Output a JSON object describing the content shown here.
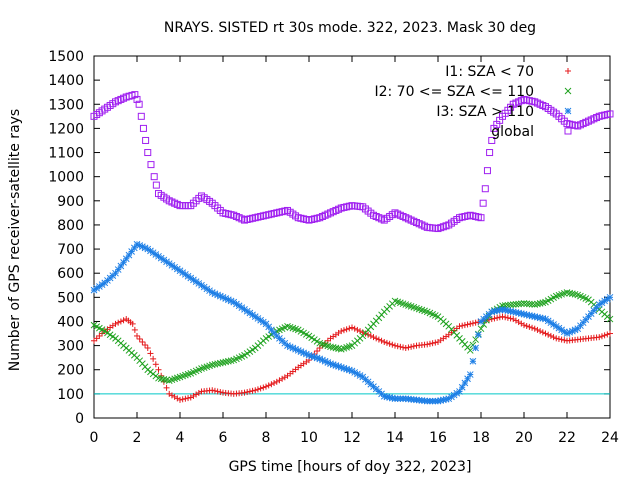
{
  "chart_data": {
    "type": "scatter",
    "title": "NRAYS. SISTED rt 30s mode. 322, 2023. Mask 30 deg",
    "xlabel": "GPS time [hours of doy 322, 2023]",
    "ylabel": "Number of GPS receiver-satellite rays",
    "xlim": [
      0,
      24
    ],
    "ylim": [
      0,
      1500
    ],
    "xticks": [
      "0",
      "2",
      "4",
      "6",
      "8",
      "10",
      "12",
      "14",
      "16",
      "18",
      "20",
      "22",
      "24"
    ],
    "yticks": [
      "0",
      "100",
      "200",
      "300",
      "400",
      "500",
      "600",
      "700",
      "800",
      "900",
      "1000",
      "1100",
      "1200",
      "1300",
      "1400",
      "1500"
    ],
    "reference_line": {
      "y": 100,
      "color": "#00c8c8"
    },
    "legend_position": "top-right",
    "series": [
      {
        "name": "I1: SZA < 70",
        "marker": "+",
        "color": "#e41a1c",
        "points": [
          [
            0,
            320
          ],
          [
            0.5,
            360
          ],
          [
            1,
            390
          ],
          [
            1.5,
            410
          ],
          [
            1.8,
            390
          ],
          [
            2,
            340
          ],
          [
            2.5,
            290
          ],
          [
            3,
            200
          ],
          [
            3.5,
            100
          ],
          [
            4,
            75
          ],
          [
            4.5,
            85
          ],
          [
            5,
            110
          ],
          [
            5.5,
            115
          ],
          [
            6,
            105
          ],
          [
            6.5,
            100
          ],
          [
            7,
            105
          ],
          [
            7.5,
            115
          ],
          [
            8,
            130
          ],
          [
            8.5,
            150
          ],
          [
            9,
            175
          ],
          [
            9.5,
            210
          ],
          [
            10,
            240
          ],
          [
            10.5,
            290
          ],
          [
            11,
            330
          ],
          [
            11.5,
            360
          ],
          [
            12,
            375
          ],
          [
            12.5,
            355
          ],
          [
            13,
            335
          ],
          [
            13.5,
            315
          ],
          [
            14,
            300
          ],
          [
            14.5,
            290
          ],
          [
            15,
            300
          ],
          [
            15.5,
            305
          ],
          [
            16,
            315
          ],
          [
            16.5,
            345
          ],
          [
            17,
            380
          ],
          [
            17.5,
            390
          ],
          [
            18,
            400
          ],
          [
            18.5,
            410
          ],
          [
            19,
            420
          ],
          [
            19.5,
            410
          ],
          [
            20,
            385
          ],
          [
            20.5,
            370
          ],
          [
            21,
            350
          ],
          [
            21.5,
            330
          ],
          [
            22,
            320
          ],
          [
            22.5,
            325
          ],
          [
            23,
            330
          ],
          [
            23.5,
            335
          ],
          [
            24,
            350
          ]
        ]
      },
      {
        "name": "I2: 70 <= SZA <= 110",
        "marker": "x",
        "color": "#1fa21f",
        "points": [
          [
            0,
            385
          ],
          [
            0.5,
            360
          ],
          [
            1,
            330
          ],
          [
            1.5,
            290
          ],
          [
            2,
            250
          ],
          [
            2.5,
            200
          ],
          [
            3,
            165
          ],
          [
            3.5,
            155
          ],
          [
            4,
            170
          ],
          [
            4.5,
            185
          ],
          [
            5,
            205
          ],
          [
            5.5,
            220
          ],
          [
            6,
            230
          ],
          [
            6.5,
            240
          ],
          [
            7,
            260
          ],
          [
            7.5,
            290
          ],
          [
            8,
            330
          ],
          [
            8.5,
            360
          ],
          [
            9,
            380
          ],
          [
            9.5,
            365
          ],
          [
            10,
            340
          ],
          [
            10.5,
            310
          ],
          [
            11,
            295
          ],
          [
            11.5,
            285
          ],
          [
            12,
            300
          ],
          [
            12.5,
            340
          ],
          [
            13,
            390
          ],
          [
            13.5,
            440
          ],
          [
            14,
            485
          ],
          [
            14.5,
            470
          ],
          [
            15,
            455
          ],
          [
            15.5,
            440
          ],
          [
            16,
            420
          ],
          [
            16.5,
            380
          ],
          [
            17,
            330
          ],
          [
            17.5,
            280
          ],
          [
            18,
            370
          ],
          [
            18.5,
            440
          ],
          [
            19,
            465
          ],
          [
            19.5,
            470
          ],
          [
            20,
            475
          ],
          [
            20.5,
            470
          ],
          [
            21,
            480
          ],
          [
            21.5,
            505
          ],
          [
            22,
            520
          ],
          [
            22.5,
            510
          ],
          [
            23,
            490
          ],
          [
            23.5,
            450
          ],
          [
            24,
            410
          ]
        ]
      },
      {
        "name": "I3: SZA > 110",
        "marker": "*",
        "color": "#1e7fe6",
        "points": [
          [
            0,
            530
          ],
          [
            0.5,
            560
          ],
          [
            1,
            600
          ],
          [
            1.5,
            660
          ],
          [
            2,
            720
          ],
          [
            2.5,
            700
          ],
          [
            3,
            670
          ],
          [
            3.5,
            640
          ],
          [
            4,
            610
          ],
          [
            4.5,
            580
          ],
          [
            5,
            550
          ],
          [
            5.5,
            520
          ],
          [
            6,
            500
          ],
          [
            6.5,
            480
          ],
          [
            7,
            450
          ],
          [
            7.5,
            420
          ],
          [
            8,
            390
          ],
          [
            8.5,
            340
          ],
          [
            9,
            300
          ],
          [
            9.5,
            280
          ],
          [
            10,
            260
          ],
          [
            10.5,
            245
          ],
          [
            11,
            225
          ],
          [
            11.5,
            210
          ],
          [
            12,
            195
          ],
          [
            12.5,
            170
          ],
          [
            13,
            130
          ],
          [
            13.5,
            90
          ],
          [
            14,
            80
          ],
          [
            14.5,
            80
          ],
          [
            15,
            75
          ],
          [
            15.5,
            70
          ],
          [
            16,
            70
          ],
          [
            16.5,
            80
          ],
          [
            17,
            110
          ],
          [
            17.5,
            180
          ],
          [
            18,
            400
          ],
          [
            18.5,
            440
          ],
          [
            19,
            450
          ],
          [
            19.5,
            440
          ],
          [
            20,
            430
          ],
          [
            20.5,
            420
          ],
          [
            21,
            410
          ],
          [
            21.5,
            380
          ],
          [
            22,
            350
          ],
          [
            22.5,
            370
          ],
          [
            23,
            420
          ],
          [
            23.5,
            470
          ],
          [
            24,
            500
          ]
        ]
      },
      {
        "name": "global",
        "marker": "square",
        "color": "#a020f0",
        "points": [
          [
            0,
            1250
          ],
          [
            0.5,
            1280
          ],
          [
            1,
            1310
          ],
          [
            1.5,
            1330
          ],
          [
            1.9,
            1340
          ],
          [
            2.1,
            1300
          ],
          [
            2.3,
            1200
          ],
          [
            2.5,
            1100
          ],
          [
            2.8,
            1000
          ],
          [
            3,
            930
          ],
          [
            3.5,
            900
          ],
          [
            4,
            880
          ],
          [
            4.5,
            880
          ],
          [
            5,
            920
          ],
          [
            5.5,
            890
          ],
          [
            6,
            850
          ],
          [
            6.5,
            840
          ],
          [
            7,
            820
          ],
          [
            7.5,
            830
          ],
          [
            8,
            840
          ],
          [
            8.5,
            850
          ],
          [
            9,
            860
          ],
          [
            9.5,
            830
          ],
          [
            10,
            820
          ],
          [
            10.5,
            830
          ],
          [
            11,
            850
          ],
          [
            11.5,
            870
          ],
          [
            12,
            880
          ],
          [
            12.5,
            875
          ],
          [
            13,
            840
          ],
          [
            13.5,
            820
          ],
          [
            14,
            850
          ],
          [
            14.5,
            830
          ],
          [
            15,
            810
          ],
          [
            15.5,
            790
          ],
          [
            16,
            785
          ],
          [
            16.5,
            800
          ],
          [
            17,
            830
          ],
          [
            17.5,
            840
          ],
          [
            18,
            830
          ],
          [
            18.2,
            950
          ],
          [
            18.4,
            1100
          ],
          [
            18.6,
            1200
          ],
          [
            19,
            1250
          ],
          [
            19.5,
            1300
          ],
          [
            20,
            1320
          ],
          [
            20.5,
            1310
          ],
          [
            21,
            1290
          ],
          [
            21.5,
            1260
          ],
          [
            22,
            1220
          ],
          [
            22.5,
            1210
          ],
          [
            23,
            1230
          ],
          [
            23.5,
            1250
          ],
          [
            24,
            1260
          ]
        ]
      }
    ]
  }
}
